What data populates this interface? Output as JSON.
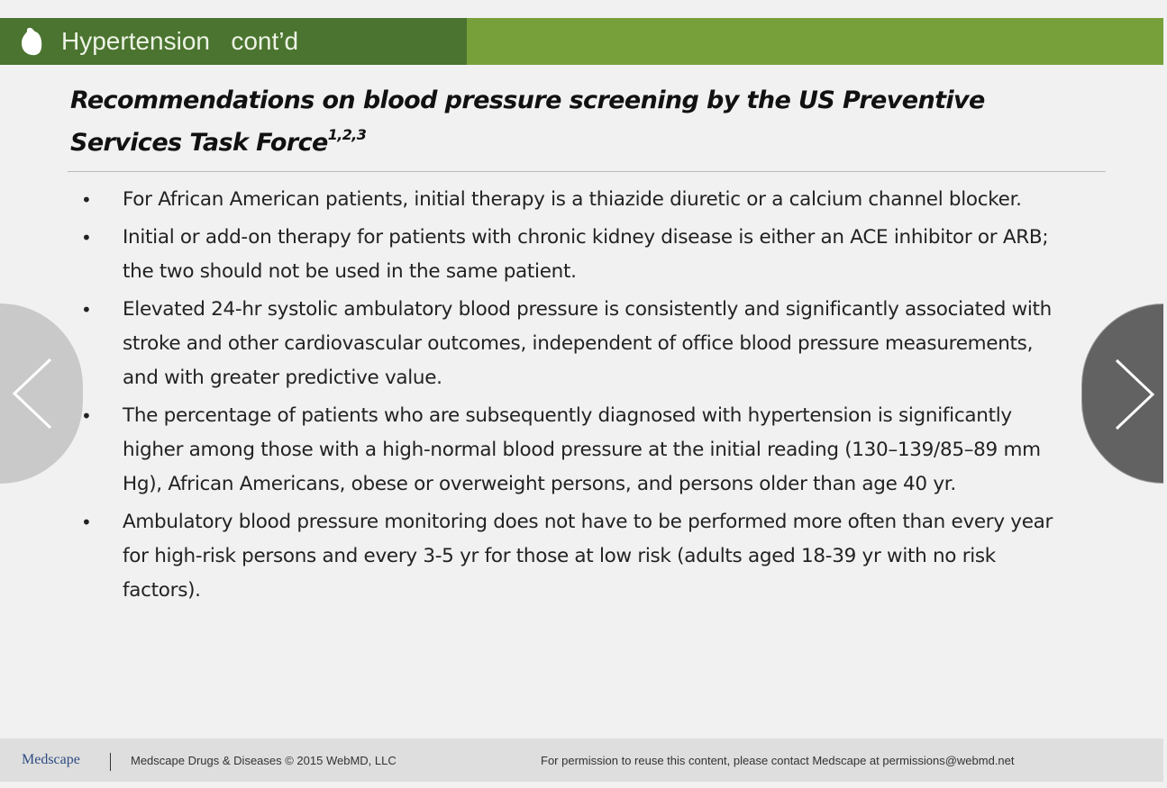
{
  "header": {
    "title": "Hypertension   cont’d",
    "icon": "heart-icon",
    "colors": {
      "dark": "#4a742f",
      "light": "#77a03a"
    }
  },
  "slide": {
    "heading": "Recommendations on blood pressure screening by the US Preventive Services Task Force",
    "heading_refs": "1,2,3",
    "bullets": [
      "For African American patients, initial therapy is a thiazide diuretic or a calcium channel blocker.",
      "Initial or add-on therapy for patients with chronic kidney disease is either an ACE inhibitor or ARB; the two should not be used in the same patient.",
      "Elevated 24-hr systolic ambulatory blood pressure is consistently and significantly associated with stroke and other cardiovascular outcomes, independent of office blood pressure measurements, and with greater predictive value.",
      "The percentage of patients who are subsequently diagnosed with hypertension is significantly higher among those with a high-normal blood pressure at the initial reading (130–139/85–89 mm Hg), African Americans, obese or overweight persons, and persons older than age 40 yr.",
      "Ambulatory blood pressure monitoring does not have to be performed more often than every year for high-risk persons and every 3-5 yr for those at low risk (adults aged 18-39 yr with no risk factors)."
    ]
  },
  "nav": {
    "prev_icon": "chevron-left-icon",
    "next_icon": "chevron-right-icon"
  },
  "footer": {
    "logo": "Medscape",
    "copyright": "Medscape Drugs & Diseases © 2015  WebMD, LLC",
    "permission": "For permission to reuse this content,  please contact Medscape at permissions@webmd.net"
  }
}
